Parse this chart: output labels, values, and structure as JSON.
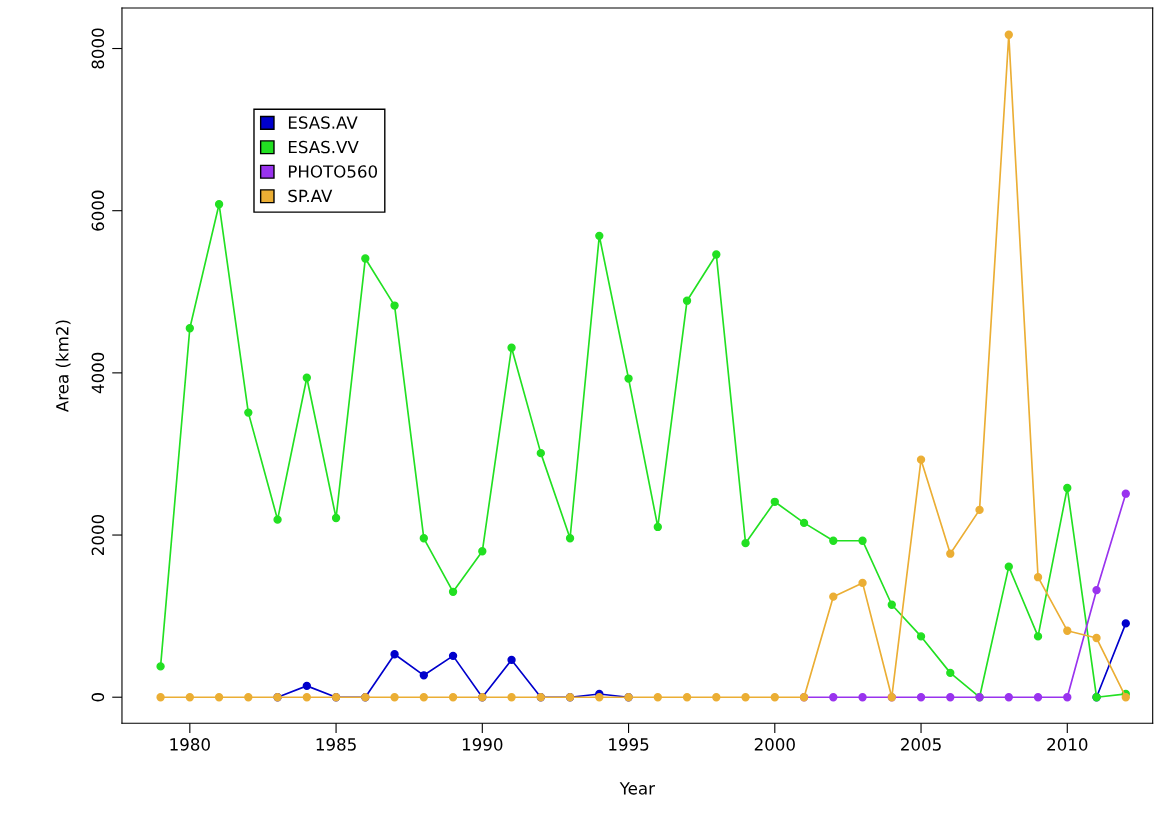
{
  "chart_data": {
    "type": "line",
    "xlabel": "Year",
    "ylabel": "Area (km2)",
    "x": [
      1979,
      1980,
      1981,
      1982,
      1983,
      1984,
      1985,
      1986,
      1987,
      1988,
      1989,
      1990,
      1991,
      1992,
      1993,
      1994,
      1995,
      1996,
      1997,
      1998,
      1999,
      2000,
      2001,
      2002,
      2003,
      2004,
      2005,
      2006,
      2007,
      2008,
      2009,
      2010,
      2011,
      2012
    ],
    "series": [
      {
        "name": "ESAS.AV",
        "color": "#0000cc",
        "values": [
          null,
          null,
          null,
          null,
          0,
          140,
          0,
          0,
          530,
          270,
          510,
          0,
          460,
          0,
          0,
          40,
          0,
          null,
          null,
          null,
          null,
          null,
          null,
          null,
          null,
          null,
          null,
          null,
          null,
          null,
          null,
          null,
          0,
          910
        ]
      },
      {
        "name": "ESAS.VV",
        "color": "#22e022",
        "values": [
          380,
          4550,
          6080,
          3510,
          2190,
          3940,
          2210,
          5410,
          4830,
          1960,
          1300,
          1800,
          4310,
          3010,
          1960,
          5690,
          3930,
          2100,
          4890,
          5460,
          1900,
          2410,
          2150,
          1930,
          1930,
          1140,
          750,
          300,
          0,
          1610,
          750,
          2580,
          0,
          40
        ]
      },
      {
        "name": "PHOTO560",
        "color": "#9933ee",
        "values": [
          null,
          null,
          null,
          null,
          null,
          null,
          null,
          null,
          null,
          null,
          null,
          null,
          null,
          null,
          null,
          null,
          null,
          null,
          null,
          null,
          null,
          null,
          0,
          0,
          0,
          0,
          0,
          0,
          0,
          0,
          0,
          0,
          1320,
          2510
        ]
      },
      {
        "name": "SP.AV",
        "color": "#ebae34",
        "values": [
          0,
          0,
          0,
          0,
          0,
          0,
          0,
          0,
          0,
          0,
          0,
          0,
          0,
          0,
          0,
          0,
          0,
          0,
          0,
          0,
          0,
          0,
          0,
          1240,
          1410,
          0,
          2930,
          1770,
          2310,
          8170,
          1480,
          820,
          730,
          0
        ]
      }
    ],
    "xlim": [
      1977.68,
      2012.92
    ],
    "xticks": [
      1980,
      1985,
      1990,
      1995,
      2000,
      2005,
      2010
    ],
    "ylim": [
      -321,
      8500
    ],
    "yticks": [
      0,
      2000,
      4000,
      6000,
      8000
    ],
    "grid": false,
    "legend": "top left",
    "marker": "circle",
    "line_style": "solid"
  }
}
